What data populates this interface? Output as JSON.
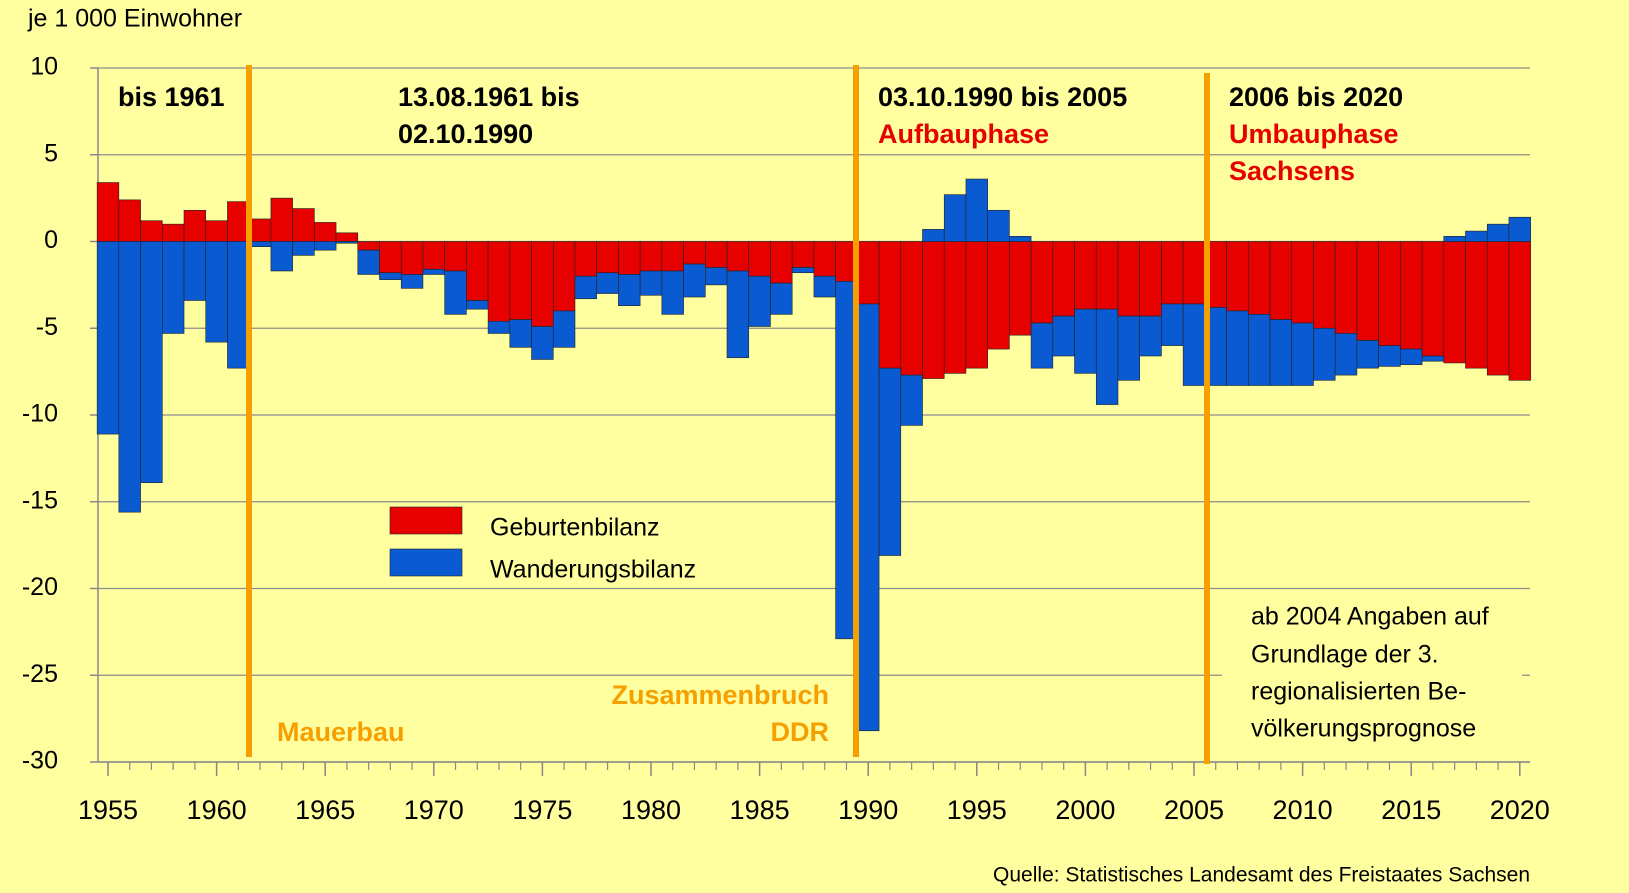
{
  "chart_data": {
    "type": "bar",
    "stacked": true,
    "y_axis_label": "je 1 000 Einwohner",
    "source": "Quelle: Statistisches Landesamt des Freistaates Sachsen",
    "categories": [
      1955,
      1956,
      1957,
      1958,
      1959,
      1960,
      1961,
      1962,
      1963,
      1964,
      1965,
      1966,
      1967,
      1968,
      1969,
      1970,
      1971,
      1972,
      1973,
      1974,
      1975,
      1976,
      1977,
      1978,
      1979,
      1980,
      1981,
      1982,
      1983,
      1984,
      1985,
      1986,
      1987,
      1988,
      1989,
      1990,
      1991,
      1992,
      1993,
      1994,
      1995,
      1996,
      1997,
      1998,
      1999,
      2000,
      2001,
      2002,
      2003,
      2004,
      2005,
      2006,
      2007,
      2008,
      2009,
      2010,
      2011,
      2012,
      2013,
      2014,
      2015,
      2016,
      2017,
      2018,
      2019,
      2020
    ],
    "series": [
      {
        "name": "Geburtenbilanz",
        "color": "#e60000",
        "values": [
          3.4,
          2.4,
          1.2,
          1.0,
          1.8,
          1.2,
          2.3,
          1.3,
          2.5,
          1.9,
          1.1,
          0.5,
          -0.5,
          -1.8,
          -1.9,
          -1.6,
          -1.7,
          -3.4,
          -4.6,
          -4.5,
          -4.9,
          -4.0,
          -2.0,
          -1.8,
          -1.9,
          -1.7,
          -1.7,
          -1.3,
          -1.5,
          -1.7,
          -2.0,
          -2.4,
          -1.5,
          -2.0,
          -2.3,
          -3.6,
          -7.3,
          -7.7,
          -7.9,
          -7.6,
          -7.3,
          -6.2,
          -5.4,
          -4.7,
          -4.3,
          -3.9,
          -3.9,
          -4.3,
          -4.3,
          -3.6,
          -3.6,
          -3.8,
          -4.0,
          -4.2,
          -4.5,
          -4.7,
          -5.0,
          -5.3,
          -5.7,
          -6.0,
          -6.2,
          -6.6,
          -7.0,
          -7.3,
          -7.7,
          -8.0
        ]
      },
      {
        "name": "Wanderungsbilanz",
        "color": "#0a5ad2",
        "values": [
          -11.1,
          -15.6,
          -13.9,
          -5.3,
          -3.4,
          -5.8,
          -7.3,
          -0.3,
          -1.7,
          -0.8,
          -0.5,
          -0.1,
          -1.4,
          -0.4,
          -0.8,
          -0.3,
          -2.5,
          -0.5,
          -0.7,
          -1.6,
          -1.9,
          -2.1,
          -1.3,
          -1.2,
          -1.8,
          -1.4,
          -2.5,
          -1.9,
          -1.0,
          -5.0,
          -2.9,
          -1.8,
          -0.3,
          -1.2,
          -20.6,
          -24.6,
          -10.8,
          -2.9,
          0.7,
          2.7,
          3.6,
          1.8,
          0.3,
          -2.6,
          -2.3,
          -3.7,
          -5.5,
          -3.7,
          -2.3,
          -2.4,
          -4.7,
          -4.5,
          -4.3,
          -4.1,
          -3.8,
          -3.6,
          -3.0,
          -2.4,
          -1.6,
          -1.2,
          -0.9,
          -0.3,
          0.3,
          0.6,
          1.0,
          1.4
        ]
      }
    ],
    "ylim": [
      -30,
      10
    ],
    "yticks": [
      -30,
      -25,
      -20,
      -15,
      -10,
      -5,
      0,
      5,
      10
    ],
    "grid": true,
    "xticks": [
      1955,
      1960,
      1965,
      1970,
      1975,
      1980,
      1985,
      1990,
      1995,
      2000,
      2005,
      2010,
      2015,
      2020
    ],
    "annotations": [
      "bis 1961",
      "13.08.1961 bis",
      "02.10.1990",
      "03.10.1990 bis 2005",
      "Aufbauphase",
      "2006 bis 2020",
      "Umbauphase",
      "Sachsens",
      "Mauerbau",
      "Zusammenbruch",
      "DDR"
    ],
    "note": [
      "ab 2004 Angaben auf",
      "Grundlage der 3.",
      "regionalisierten Be-",
      "völkerungsprognose"
    ]
  }
}
